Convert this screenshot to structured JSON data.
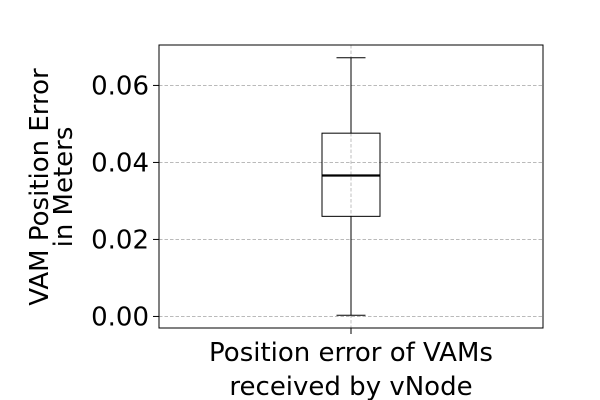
{
  "chart_data": {
    "type": "box",
    "title": "",
    "xlabel_lines": [
      "Position error of VAMs",
      "received by vNode"
    ],
    "ylabel_lines": [
      "VAM Position Error",
      "in Meters"
    ],
    "ylim": [
      -0.003,
      0.0705
    ],
    "yticks": [
      0.0,
      0.02,
      0.04,
      0.06
    ],
    "ytick_labels": [
      "0.00",
      "0.02",
      "0.04",
      "0.06"
    ],
    "grid": true,
    "boxes": [
      {
        "whisker_low": 0.0003,
        "q1": 0.026,
        "median": 0.0366,
        "q3": 0.0476,
        "whisker_high": 0.0672
      }
    ]
  }
}
